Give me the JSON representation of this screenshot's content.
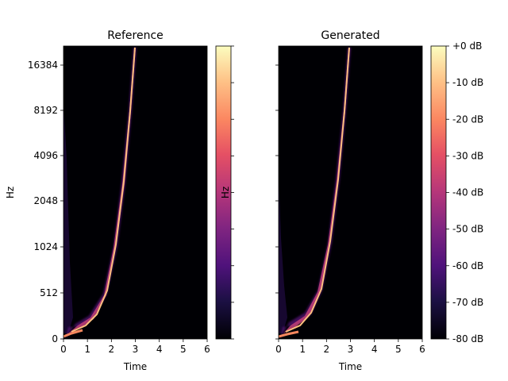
{
  "chart_data": [
    {
      "type": "heatmap",
      "title": "Reference",
      "xlabel": "Time",
      "ylabel": "Hz",
      "xlim": [
        0,
        6
      ],
      "x_ticks": [
        "0",
        "1",
        "2",
        "3",
        "4",
        "5",
        "6"
      ],
      "y_ticks": [
        "0",
        "512",
        "1024",
        "2048",
        "4096",
        "8192",
        "16384"
      ],
      "y_scale": "log (mel-style)",
      "colormap": "magma",
      "sweep": {
        "start_time": 0.1,
        "end_time": 3.1,
        "start_hz": 100,
        "end_hz": 20000
      },
      "colorbar": {
        "ticks_labeled": false,
        "label": "Hz"
      }
    },
    {
      "type": "heatmap",
      "title": "Generated",
      "xlabel": "Time",
      "xlim": [
        0,
        6
      ],
      "x_ticks": [
        "0",
        "1",
        "2",
        "3",
        "4",
        "5",
        "6"
      ],
      "y_ticks_shared": true,
      "colormap": "magma",
      "sweep": {
        "start_time": 0.0,
        "end_time": 3.1,
        "start_hz": 100,
        "end_hz": 20000
      },
      "colorbar": {
        "ticks": [
          "+0 dB",
          "-10 dB",
          "-20 dB",
          "-30 dB",
          "-40 dB",
          "-50 dB",
          "-60 dB",
          "-70 dB",
          "-80 dB"
        ],
        "range_db": [
          -80,
          0
        ]
      }
    }
  ]
}
